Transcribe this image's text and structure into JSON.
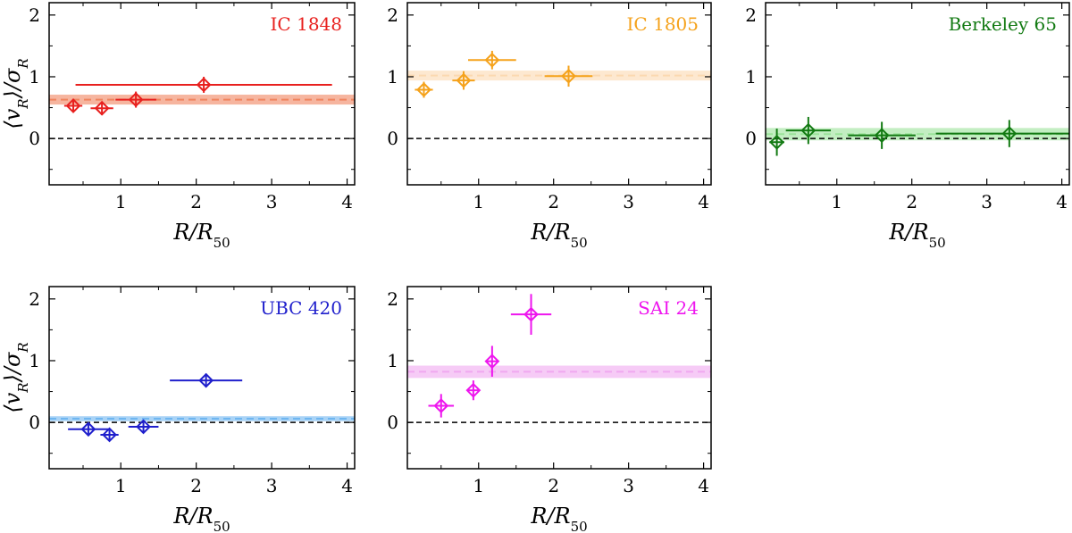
{
  "chart_data": [
    {
      "type": "scatter",
      "title": "IC 1848",
      "color": "#e8201e",
      "band_color": "#f0845f",
      "xlabel": "R/R50",
      "ylabel": "⟨vR⟩/σR",
      "xlim": [
        0.05,
        4.1
      ],
      "ylim": [
        -0.75,
        2.2
      ],
      "xticks": [
        1,
        2,
        3,
        4
      ],
      "yticks": [
        0,
        1,
        2
      ],
      "mean": 0.63,
      "mean_err": 0.08,
      "points": [
        {
          "x": 0.37,
          "y": 0.53,
          "xerr": 0.12,
          "yerr": 0.11
        },
        {
          "x": 0.75,
          "y": 0.49,
          "xerr": 0.15,
          "yerr": 0.11
        },
        {
          "x": 1.2,
          "y": 0.63,
          "xerr": 0.27,
          "yerr": 0.13
        },
        {
          "x": 2.1,
          "y": 0.87,
          "xerr": 1.7,
          "yerr": 0.13
        }
      ]
    },
    {
      "type": "scatter",
      "title": "IC 1805",
      "color": "#f5a21b",
      "band_color": "#fbd9b0",
      "xlabel": "R/R50",
      "ylabel": "⟨vR⟩/σR",
      "xlim": [
        0.05,
        4.1
      ],
      "ylim": [
        -0.75,
        2.2
      ],
      "xticks": [
        1,
        2,
        3,
        4
      ],
      "yticks": [
        0,
        1,
        2
      ],
      "mean": 1.02,
      "mean_err": 0.08,
      "points": [
        {
          "x": 0.27,
          "y": 0.79,
          "xerr": 0.12,
          "yerr": 0.13
        },
        {
          "x": 0.8,
          "y": 0.94,
          "xerr": 0.15,
          "yerr": 0.15
        },
        {
          "x": 1.18,
          "y": 1.27,
          "xerr": 0.32,
          "yerr": 0.15
        },
        {
          "x": 2.2,
          "y": 1.01,
          "xerr": 0.32,
          "yerr": 0.17
        }
      ]
    },
    {
      "type": "scatter",
      "title": "Berkeley 65",
      "color": "#127a12",
      "band_color": "#9be39a",
      "xlabel": "R/R50",
      "ylabel": "⟨vR⟩/σR",
      "xlim": [
        0.05,
        4.1
      ],
      "ylim": [
        -0.75,
        2.2
      ],
      "xticks": [
        1,
        2,
        3,
        4
      ],
      "yticks": [
        0,
        1,
        2
      ],
      "mean": 0.07,
      "mean_err": 0.1,
      "points": [
        {
          "x": 0.2,
          "y": -0.06,
          "xerr": 0.1,
          "yerr": 0.22
        },
        {
          "x": 0.62,
          "y": 0.13,
          "xerr": 0.3,
          "yerr": 0.22
        },
        {
          "x": 1.6,
          "y": 0.05,
          "xerr": 0.45,
          "yerr": 0.22
        },
        {
          "x": 3.3,
          "y": 0.08,
          "xerr": 0.98,
          "yerr": 0.22
        }
      ]
    },
    {
      "type": "scatter",
      "title": "UBC 420",
      "color": "#1f1fcc",
      "band_color": "#6fb6f0",
      "xlabel": "R/R50",
      "ylabel": "⟨vR⟩/σR",
      "xlim": [
        0.05,
        4.1
      ],
      "ylim": [
        -0.75,
        2.2
      ],
      "xticks": [
        1,
        2,
        3,
        4
      ],
      "yticks": [
        0,
        1,
        2
      ],
      "mean": 0.06,
      "mean_err": 0.04,
      "points": [
        {
          "x": 0.57,
          "y": -0.11,
          "xerr": 0.27,
          "yerr": 0.1
        },
        {
          "x": 0.85,
          "y": -0.2,
          "xerr": 0.12,
          "yerr": 0.1
        },
        {
          "x": 1.3,
          "y": -0.07,
          "xerr": 0.2,
          "yerr": 0.1
        },
        {
          "x": 2.13,
          "y": 0.68,
          "xerr": 0.48,
          "yerr": 0.11
        }
      ]
    },
    {
      "type": "scatter",
      "title": "SAI 24",
      "color": "#ee16ee",
      "band_color": "#f0a8f0",
      "xlabel": "R/R50",
      "ylabel": "⟨vR⟩/σR",
      "xlim": [
        0.05,
        4.1
      ],
      "ylim": [
        -0.75,
        2.2
      ],
      "xticks": [
        1,
        2,
        3,
        4
      ],
      "yticks": [
        0,
        1,
        2
      ],
      "mean": 0.82,
      "mean_err": 0.1,
      "points": [
        {
          "x": 0.5,
          "y": 0.27,
          "xerr": 0.17,
          "yerr": 0.19
        },
        {
          "x": 0.93,
          "y": 0.52,
          "xerr": 0.07,
          "yerr": 0.16
        },
        {
          "x": 1.18,
          "y": 0.99,
          "xerr": 0.07,
          "yerr": 0.25
        },
        {
          "x": 1.7,
          "y": 1.75,
          "xerr": 0.27,
          "yerr": 0.33
        }
      ]
    }
  ]
}
